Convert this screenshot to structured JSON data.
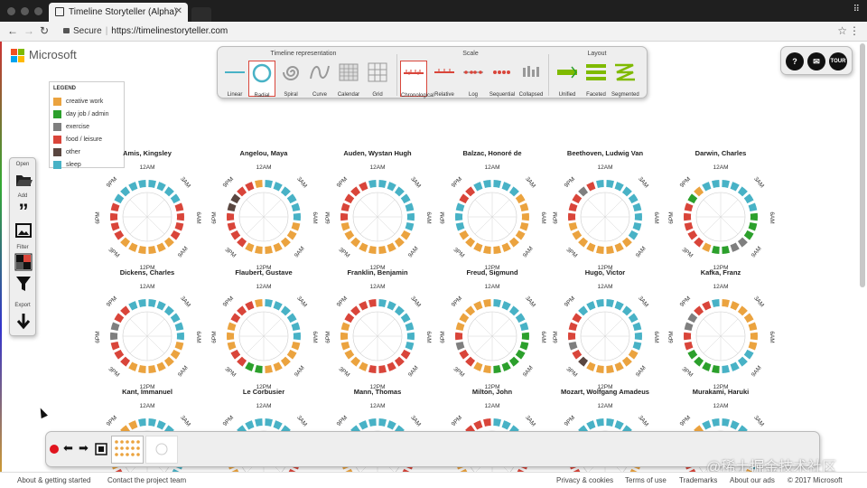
{
  "browser": {
    "tab_title": "Timeline Storyteller (Alpha)",
    "account_label": "⠿",
    "secure_label": "Secure",
    "url": "https://timelinestoryteller.com"
  },
  "brand": {
    "name": "Microsoft"
  },
  "toolbar": {
    "groups": [
      {
        "title": "Timeline representation",
        "buttons": [
          "Linear",
          "Radial",
          "Spiral",
          "Curve",
          "Calendar",
          "Grid"
        ]
      },
      {
        "title": "Scale",
        "buttons": [
          "Chronological",
          "Relative",
          "Log",
          "Sequential",
          "Collapsed"
        ]
      },
      {
        "title": "Layout",
        "buttons": [
          "Unified",
          "Faceted",
          "Segmented"
        ]
      }
    ],
    "selected": "Radial"
  },
  "help": {
    "help": "?",
    "mail": "✉",
    "tour": "TOUR"
  },
  "legend": {
    "title": "LEGEND",
    "items": [
      {
        "label": "creative work",
        "color": "#eba33f"
      },
      {
        "label": "day job / admin",
        "color": "#2ca02c"
      },
      {
        "label": "exercise",
        "color": "#7f7f7f"
      },
      {
        "label": "food / leisure",
        "color": "#d9453a"
      },
      {
        "label": "other",
        "color": "#5a4640"
      },
      {
        "label": "sleep",
        "color": "#48b2c6"
      }
    ]
  },
  "side_tools": {
    "open": "Open",
    "add": "Add",
    "filter": "Filter",
    "export": "Export"
  },
  "clock_labels": {
    "top": "12AM",
    "tr": "3AM",
    "right": "6AM",
    "br": "9AM",
    "bottom": "12PM",
    "bl": "3PM",
    "left": "6PM",
    "tl": "9PM"
  },
  "people": [
    "Amis, Kingsley",
    "Angelou, Maya",
    "Auden, Wystan Hugh",
    "Balzac, Honoré de",
    "Beethoven, Ludwig Van",
    "Darwin, Charles",
    "Dickens, Charles",
    "Flaubert, Gustave",
    "Franklin, Benjamin",
    "Freud, Sigmund",
    "Hugo, Victor",
    "Kafka, Franz",
    "Kant, Immanuel",
    "Le Corbusier",
    "Mann, Thomas",
    "Milton, John",
    "Mozart, Wolfgang Amadeus",
    "Murakami, Haruki"
  ],
  "footer": {
    "about": "About & getting started",
    "contact": "Contact the project team",
    "privacy": "Privacy & cookies",
    "terms": "Terms of use",
    "trademarks": "Trademarks",
    "ads": "About our ads",
    "copyright": "© 2017 Microsoft"
  },
  "watermark": "@稀土掘金技术社区"
}
